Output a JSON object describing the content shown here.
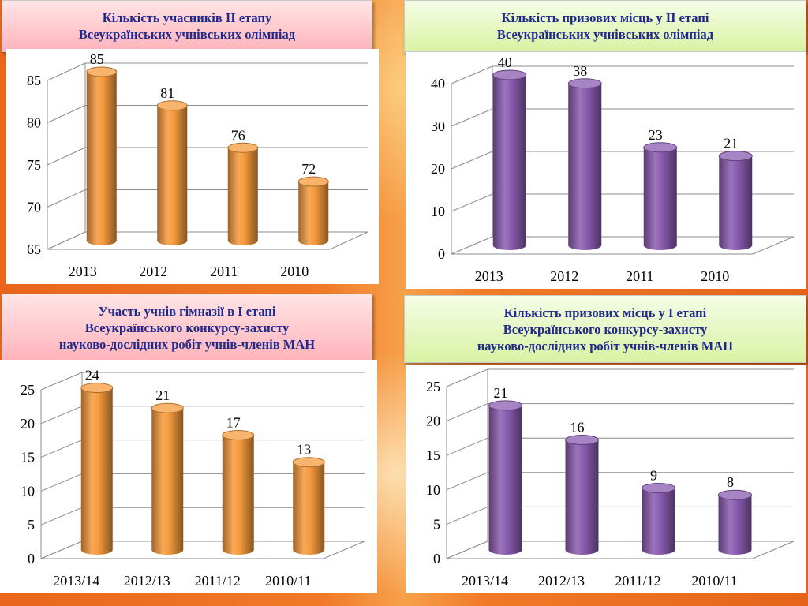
{
  "charts": [
    {
      "title_lines": [
        "Кількість учасників ІІ етапу",
        "Всеукраїнських учнівських олімпіад"
      ],
      "theme": "pink"
    },
    {
      "title_lines": [
        "Кількість призових місць у ІІ етапі",
        "Всеукраїнських учнівських олімпіад"
      ],
      "theme": "green"
    },
    {
      "title_lines": [
        "Участь учнів гімназії в І етапі",
        "Всеукраїнського конкурсу-захисту",
        "науково-дослідних робіт учнів-членів МАН"
      ],
      "theme": "pink"
    },
    {
      "title_lines": [
        "Кількість призових місць у І етапі",
        "Всеукраїнського конкурсу-захисту",
        "науково-дослідних робіт учнів-членів МАН"
      ],
      "theme": "green"
    }
  ],
  "chart_data": [
    {
      "type": "bar",
      "categories": [
        "2013",
        "2012",
        "2011",
        "2010"
      ],
      "values": [
        85,
        81,
        76,
        72
      ],
      "ylim": [
        65,
        85
      ],
      "yticks": [
        65,
        70,
        75,
        80,
        85
      ],
      "bar_color": "#f59a3c",
      "grid": true,
      "legend": "none"
    },
    {
      "type": "bar",
      "categories": [
        "2013",
        "2012",
        "2011",
        "2010"
      ],
      "values": [
        40,
        38,
        23,
        21
      ],
      "ylim": [
        0,
        40
      ],
      "yticks": [
        0,
        10,
        20,
        30,
        40
      ],
      "bar_color": "#8a5cb0",
      "grid": true,
      "legend": "none"
    },
    {
      "type": "bar",
      "categories": [
        "2013/14",
        "2012/13",
        "2011/12",
        "2010/11"
      ],
      "values": [
        24,
        21,
        17,
        13
      ],
      "ylim": [
        0,
        25
      ],
      "yticks": [
        0,
        5,
        10,
        15,
        20,
        25
      ],
      "bar_color": "#f59a3c",
      "grid": true,
      "legend": "none"
    },
    {
      "type": "bar",
      "categories": [
        "2013/14",
        "2012/13",
        "2011/12",
        "2010/11"
      ],
      "values": [
        21,
        16,
        9,
        8
      ],
      "ylim": [
        0,
        25
      ],
      "yticks": [
        0,
        5,
        10,
        15,
        20,
        25
      ],
      "bar_color": "#8a5cb0",
      "grid": true,
      "legend": "none"
    }
  ]
}
